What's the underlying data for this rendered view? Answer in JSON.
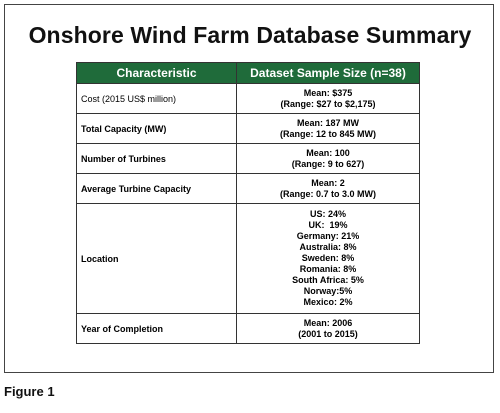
{
  "title": "Onshore Wind Farm Database Summary",
  "table": {
    "headers": [
      "Characteristic",
      "Dataset Sample Size (n=38)"
    ],
    "rows": [
      {
        "label": "Cost",
        "unit": " (2015 US$ million)",
        "values": [
          "Mean: $375",
          "(Range: $27 to $2,175)"
        ]
      },
      {
        "label": "Total Capacity (MW)",
        "unit": "",
        "values": [
          "Mean: 187 MW",
          "(Range: 12 to 845 MW)"
        ]
      },
      {
        "label": "Number of Turbines",
        "unit": "",
        "values": [
          "Mean: 100",
          "(Range: 9 to 627)"
        ]
      },
      {
        "label": "Average Turbine Capacity",
        "unit": "",
        "values": [
          "Mean: 2",
          "(Range: 0.7 to 3.0 MW)"
        ]
      },
      {
        "label": "Location",
        "unit": "",
        "values": [
          "US: 24%",
          "UK:  19%",
          "Germany: 21%",
          "Australia: 8%",
          "Sweden: 8%",
          "Romania: 8%",
          "South Africa: 5%",
          "Norway:5%",
          "Mexico: 2%"
        ]
      },
      {
        "label": "Year of Completion",
        "unit": "",
        "values": [
          "Mean: 2006",
          "(2001 to 2015)"
        ]
      }
    ]
  },
  "caption": "Figure 1"
}
